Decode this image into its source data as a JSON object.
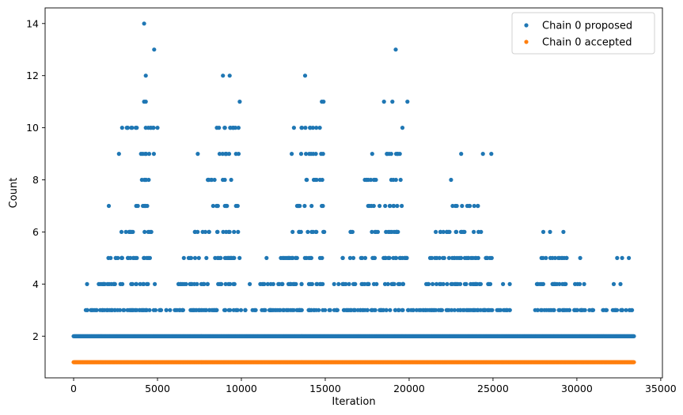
{
  "chart_data": {
    "type": "scatter",
    "title": "",
    "xlabel": "Iteration",
    "ylabel": "Count",
    "xlim": [
      -1700,
      35100
    ],
    "ylim": [
      0.4,
      14.6
    ],
    "xticks": [
      0,
      5000,
      10000,
      15000,
      20000,
      25000,
      30000,
      35000
    ],
    "yticks": [
      2,
      4,
      6,
      8,
      10,
      12,
      14
    ],
    "legend_position": "top-right",
    "grid": false,
    "series": [
      {
        "name": "Chain 0 proposed",
        "color": "#1f77b4",
        "clusters": [
          {
            "count": 2,
            "x_ranges": [
              [
                0,
                33400
              ]
            ]
          },
          {
            "count": 3,
            "x_ranges": [
              [
                300,
                4900
              ],
              [
                5100,
                10000
              ],
              [
                10200,
                15000
              ],
              [
                15100,
                19700
              ],
              [
                19800,
                25000
              ],
              [
                25200,
                26200
              ],
              [
                27500,
                31000
              ],
              [
                31500,
                33300
              ]
            ]
          },
          {
            "count": 4,
            "x_ranges": [
              [
                1500,
                4900
              ],
              [
                6200,
                9900
              ],
              [
                11000,
                15000
              ],
              [
                15500,
                19800
              ],
              [
                21000,
                25000
              ],
              [
                27600,
                30500
              ]
            ]
          },
          {
            "count": 5,
            "x_ranges": [
              [
                2000,
                4800
              ],
              [
                6500,
                9900
              ],
              [
                12000,
                15000
              ],
              [
                16000,
                19900
              ],
              [
                21000,
                25000
              ],
              [
                27800,
                29500
              ]
            ]
          },
          {
            "count": 6,
            "x_ranges": [
              [
                2600,
                4800
              ],
              [
                7000,
                9900
              ],
              [
                13000,
                15000
              ],
              [
                16500,
                19600
              ],
              [
                21500,
                24800
              ]
            ]
          },
          {
            "count": 7,
            "x_ranges": [
              [
                3500,
                4800
              ],
              [
                8000,
                9900
              ],
              [
                13300,
                15000
              ],
              [
                17500,
                19800
              ],
              [
                22500,
                24400
              ]
            ]
          },
          {
            "count": 8,
            "x_ranges": [
              [
                3500,
                4600
              ],
              [
                8000,
                9900
              ],
              [
                13800,
                15000
              ],
              [
                17300,
                19700
              ]
            ]
          },
          {
            "count": 9,
            "x_ranges": [
              [
                3800,
                4900
              ],
              [
                8500,
                9900
              ],
              [
                13500,
                14900
              ],
              [
                18400,
                19800
              ]
            ]
          },
          {
            "count": 10,
            "x_ranges": [
              [
                2800,
                4900
              ],
              [
                8300,
                9900
              ],
              [
                13100,
                14800
              ]
            ]
          }
        ],
        "points": [
          {
            "x": 800,
            "y": 4
          },
          {
            "x": 1500,
            "y": 4
          },
          {
            "x": 2100,
            "y": 7
          },
          {
            "x": 2700,
            "y": 9
          },
          {
            "x": 7400,
            "y": 9
          },
          {
            "x": 13000,
            "y": 9
          },
          {
            "x": 17800,
            "y": 9
          },
          {
            "x": 23100,
            "y": 9
          },
          {
            "x": 24400,
            "y": 9
          },
          {
            "x": 24900,
            "y": 9
          },
          {
            "x": 3700,
            "y": 10
          },
          {
            "x": 4300,
            "y": 10
          },
          {
            "x": 4600,
            "y": 10
          },
          {
            "x": 5000,
            "y": 10
          },
          {
            "x": 9000,
            "y": 10
          },
          {
            "x": 9500,
            "y": 10
          },
          {
            "x": 19600,
            "y": 10
          },
          {
            "x": 4200,
            "y": 11
          },
          {
            "x": 4300,
            "y": 11
          },
          {
            "x": 9900,
            "y": 11
          },
          {
            "x": 14800,
            "y": 11
          },
          {
            "x": 14900,
            "y": 11
          },
          {
            "x": 18500,
            "y": 11
          },
          {
            "x": 19000,
            "y": 11
          },
          {
            "x": 19900,
            "y": 11
          },
          {
            "x": 4300,
            "y": 12
          },
          {
            "x": 8900,
            "y": 12
          },
          {
            "x": 9300,
            "y": 12
          },
          {
            "x": 13800,
            "y": 12
          },
          {
            "x": 4800,
            "y": 13
          },
          {
            "x": 19200,
            "y": 13
          },
          {
            "x": 4200,
            "y": 14
          },
          {
            "x": 22500,
            "y": 8
          },
          {
            "x": 28000,
            "y": 6
          },
          {
            "x": 28400,
            "y": 6
          },
          {
            "x": 29200,
            "y": 6
          },
          {
            "x": 30200,
            "y": 5
          },
          {
            "x": 32400,
            "y": 5
          },
          {
            "x": 32700,
            "y": 5
          },
          {
            "x": 33100,
            "y": 5
          },
          {
            "x": 32200,
            "y": 4
          },
          {
            "x": 32600,
            "y": 4
          },
          {
            "x": 10500,
            "y": 4
          },
          {
            "x": 11500,
            "y": 5
          },
          {
            "x": 25600,
            "y": 4
          },
          {
            "x": 26000,
            "y": 4
          }
        ]
      },
      {
        "name": "Chain 0 accepted",
        "color": "#ff7f0e",
        "clusters": [
          {
            "count": 1,
            "x_ranges": [
              [
                0,
                33400
              ]
            ]
          }
        ],
        "points": []
      }
    ]
  }
}
